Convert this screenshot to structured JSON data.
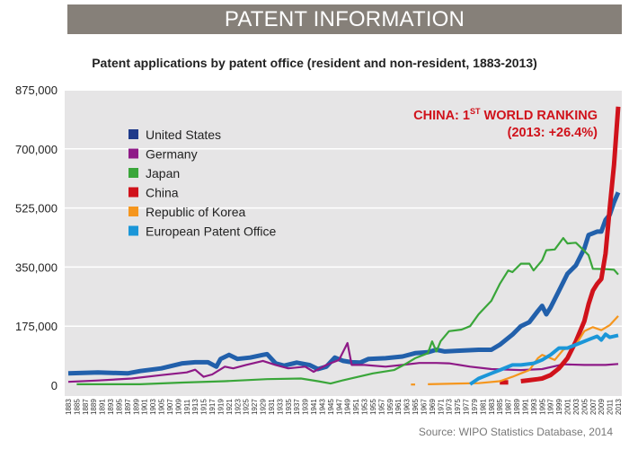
{
  "header": {
    "title": "PATENT INFORMATION"
  },
  "chart_data": {
    "type": "line",
    "title": "Patent applications by patent office (resident and non-resident, 1883-2013)",
    "xlabel": "",
    "ylabel": "",
    "xlim": [
      1883,
      2013
    ],
    "ylim": [
      0,
      875000
    ],
    "yticks": [
      0,
      175000,
      350000,
      525000,
      700000,
      875000
    ],
    "ytick_labels": [
      "0",
      "175,000",
      "350,000",
      "525,000",
      "700,000",
      "875,000"
    ],
    "xtick_step": 2,
    "grid": "horizontal",
    "legend_position": "top-left",
    "annotation": {
      "line1_prefix": "CHINA: 1",
      "line1_sup": "ST",
      "line1_suffix": " WORLD RANKING",
      "line2": "(2013: +26.4%)",
      "color": "#d0121b"
    },
    "series": [
      {
        "name": "United States",
        "color": "#2260ab",
        "legend_color": "#1f3a8a",
        "points": [
          [
            1883,
            35000
          ],
          [
            1890,
            38000
          ],
          [
            1897,
            35000
          ],
          [
            1900,
            42000
          ],
          [
            1905,
            50000
          ],
          [
            1910,
            65000
          ],
          [
            1913,
            68000
          ],
          [
            1916,
            68000
          ],
          [
            1918,
            55000
          ],
          [
            1919,
            78000
          ],
          [
            1921,
            90000
          ],
          [
            1923,
            78000
          ],
          [
            1926,
            82000
          ],
          [
            1929,
            90000
          ],
          [
            1930,
            92000
          ],
          [
            1932,
            65000
          ],
          [
            1934,
            58000
          ],
          [
            1937,
            67000
          ],
          [
            1940,
            60000
          ],
          [
            1942,
            48000
          ],
          [
            1944,
            55000
          ],
          [
            1946,
            82000
          ],
          [
            1948,
            72000
          ],
          [
            1950,
            68000
          ],
          [
            1952,
            67000
          ],
          [
            1954,
            78000
          ],
          [
            1958,
            80000
          ],
          [
            1962,
            85000
          ],
          [
            1965,
            95000
          ],
          [
            1968,
            98000
          ],
          [
            1970,
            105000
          ],
          [
            1972,
            100000
          ],
          [
            1975,
            102000
          ],
          [
            1980,
            105000
          ],
          [
            1983,
            105000
          ],
          [
            1985,
            120000
          ],
          [
            1988,
            150000
          ],
          [
            1990,
            175000
          ],
          [
            1992,
            187000
          ],
          [
            1994,
            220000
          ],
          [
            1995,
            235000
          ],
          [
            1996,
            210000
          ],
          [
            1997,
            230000
          ],
          [
            1999,
            280000
          ],
          [
            2001,
            330000
          ],
          [
            2003,
            355000
          ],
          [
            2005,
            405000
          ],
          [
            2006,
            445000
          ],
          [
            2008,
            455000
          ],
          [
            2009,
            455000
          ],
          [
            2010,
            490000
          ],
          [
            2011,
            505000
          ],
          [
            2012,
            542000
          ],
          [
            2013,
            571000
          ]
        ]
      },
      {
        "name": "Germany",
        "color": "#8e1a87",
        "legend_color": "#8e1a87",
        "points": [
          [
            1883,
            10000
          ],
          [
            1890,
            14000
          ],
          [
            1898,
            20000
          ],
          [
            1905,
            30000
          ],
          [
            1911,
            38000
          ],
          [
            1913,
            46000
          ],
          [
            1915,
            25000
          ],
          [
            1917,
            32000
          ],
          [
            1920,
            55000
          ],
          [
            1922,
            50000
          ],
          [
            1925,
            60000
          ],
          [
            1929,
            72000
          ],
          [
            1932,
            60000
          ],
          [
            1935,
            50000
          ],
          [
            1939,
            55000
          ],
          [
            1941,
            40000
          ],
          [
            1944,
            60000
          ],
          [
            1947,
            75000
          ],
          [
            1949,
            125000
          ],
          [
            1950,
            60000
          ],
          [
            1953,
            60000
          ],
          [
            1958,
            55000
          ],
          [
            1962,
            60000
          ],
          [
            1966,
            66000
          ],
          [
            1970,
            66000
          ],
          [
            1973,
            65000
          ],
          [
            1978,
            55000
          ],
          [
            1983,
            48000
          ],
          [
            1990,
            45000
          ],
          [
            1995,
            48000
          ],
          [
            2000,
            62000
          ],
          [
            2005,
            60000
          ],
          [
            2010,
            60000
          ],
          [
            2013,
            63000
          ]
        ]
      },
      {
        "name": "Japan",
        "color": "#3aa63a",
        "legend_color": "#3aa63a",
        "points": [
          [
            1885,
            3000
          ],
          [
            1900,
            3000
          ],
          [
            1910,
            8000
          ],
          [
            1920,
            12000
          ],
          [
            1930,
            18000
          ],
          [
            1938,
            20000
          ],
          [
            1942,
            12000
          ],
          [
            1945,
            5000
          ],
          [
            1948,
            15000
          ],
          [
            1955,
            35000
          ],
          [
            1960,
            45000
          ],
          [
            1963,
            65000
          ],
          [
            1965,
            80000
          ],
          [
            1968,
            95000
          ],
          [
            1969,
            130000
          ],
          [
            1970,
            100000
          ],
          [
            1971,
            130000
          ],
          [
            1973,
            160000
          ],
          [
            1976,
            165000
          ],
          [
            1978,
            175000
          ],
          [
            1980,
            210000
          ],
          [
            1983,
            250000
          ],
          [
            1985,
            300000
          ],
          [
            1987,
            340000
          ],
          [
            1988,
            335000
          ],
          [
            1990,
            360000
          ],
          [
            1992,
            360000
          ],
          [
            1993,
            340000
          ],
          [
            1995,
            370000
          ],
          [
            1996,
            400000
          ],
          [
            1998,
            402000
          ],
          [
            2000,
            436000
          ],
          [
            2001,
            420000
          ],
          [
            2003,
            422000
          ],
          [
            2005,
            398000
          ],
          [
            2006,
            385000
          ],
          [
            2007,
            345000
          ],
          [
            2010,
            344000
          ],
          [
            2012,
            342000
          ],
          [
            2013,
            328000
          ]
        ]
      },
      {
        "name": "China",
        "color": "#d0121b",
        "legend_color": "#d0121b",
        "points": [
          [
            1985,
            8500
          ],
          [
            1987,
            8500
          ],
          null,
          [
            1990,
            12000
          ],
          [
            1992,
            15000
          ],
          [
            1994,
            18000
          ],
          [
            1995,
            20000
          ],
          [
            1997,
            30000
          ],
          [
            1999,
            50000
          ],
          [
            2001,
            80000
          ],
          [
            2003,
            130000
          ],
          [
            2005,
            190000
          ],
          [
            2006,
            240000
          ],
          [
            2007,
            280000
          ],
          [
            2008,
            300000
          ],
          [
            2009,
            315000
          ],
          [
            2010,
            390000
          ],
          [
            2011,
            526000
          ],
          [
            2012,
            652000
          ],
          [
            2013,
            825000
          ]
        ]
      },
      {
        "name": "Republic of Korea",
        "color": "#f5961e",
        "legend_color": "#f5961e",
        "points": [
          [
            1964,
            2000
          ],
          [
            1965,
            2000
          ],
          null,
          [
            1968,
            3000
          ],
          [
            1975,
            5000
          ],
          [
            1980,
            6000
          ],
          [
            1985,
            12000
          ],
          [
            1988,
            25000
          ],
          [
            1990,
            35000
          ],
          [
            1992,
            45000
          ],
          [
            1994,
            80000
          ],
          [
            1995,
            90000
          ],
          [
            1997,
            80000
          ],
          [
            1998,
            75000
          ],
          [
            2000,
            105000
          ],
          [
            2003,
            120000
          ],
          [
            2005,
            160000
          ],
          [
            2007,
            172000
          ],
          [
            2009,
            163000
          ],
          [
            2011,
            178000
          ],
          [
            2013,
            205000
          ]
        ]
      },
      {
        "name": "European Patent Office",
        "color": "#1b96d8",
        "legend_color": "#1b96d8",
        "points": [
          [
            1978,
            3000
          ],
          [
            1980,
            20000
          ],
          [
            1983,
            35000
          ],
          [
            1985,
            45000
          ],
          [
            1988,
            60000
          ],
          [
            1990,
            60000
          ],
          [
            1993,
            65000
          ],
          [
            1995,
            75000
          ],
          [
            1997,
            90000
          ],
          [
            1999,
            110000
          ],
          [
            2001,
            110000
          ],
          [
            2004,
            125000
          ],
          [
            2006,
            135000
          ],
          [
            2008,
            145000
          ],
          [
            2009,
            134000
          ],
          [
            2010,
            151000
          ],
          [
            2011,
            142000
          ],
          [
            2013,
            148000
          ]
        ]
      }
    ]
  },
  "source": "Source: WIPO Statistics Database, 2014"
}
